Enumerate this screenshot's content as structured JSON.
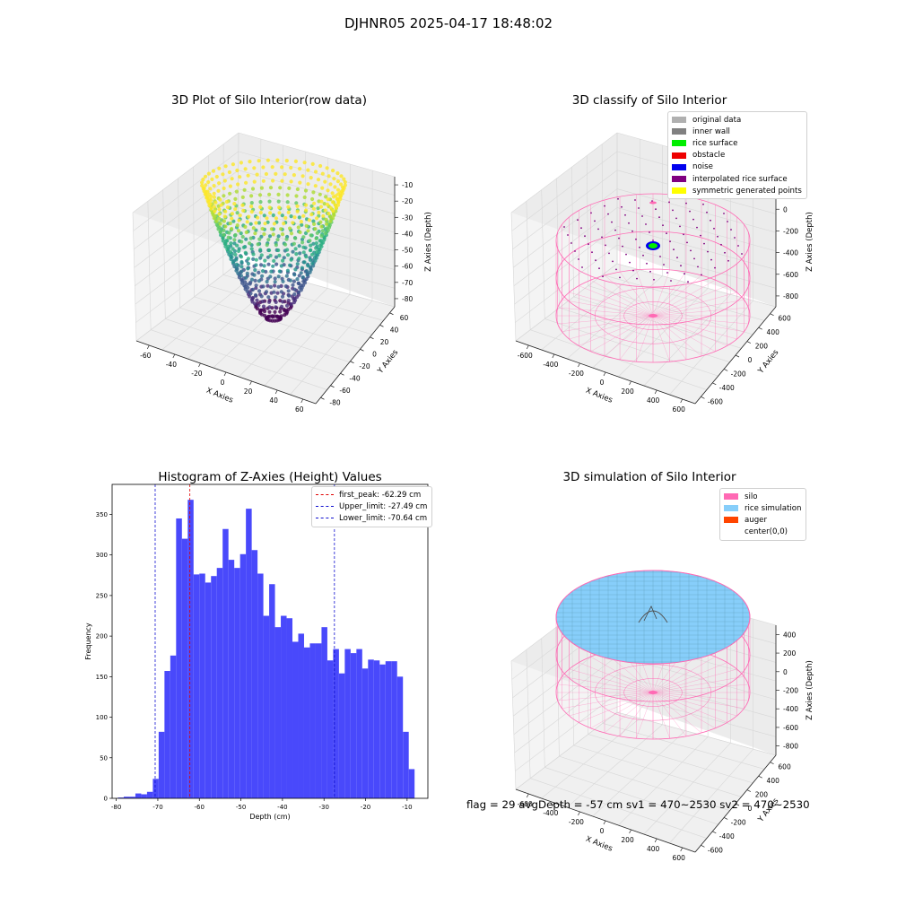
{
  "suptitle": "DJHNR05 2025-04-17 18:48:02",
  "colors": {
    "hist_bar": "#4949fb",
    "first_peak": "#e00000",
    "limit": "#1010d0",
    "silo": "#ff69b4",
    "rice": "#87cefa",
    "auger": "#ff4500",
    "rice_surface": "#00ee00",
    "noise": "#0000ee",
    "obstacle": "#ee0000",
    "inner_wall": "#808080",
    "original": "#b0b0b0",
    "interp": "#800080",
    "symmetric": "#ffff00"
  },
  "panel_raw": {
    "title": "3D Plot of Silo Interior(row data)",
    "x_label": "X Axies",
    "y_label": "Y Axies",
    "z_label": "Z Axies (Depth)",
    "x_ticks": [
      "-60",
      "-40",
      "-20",
      "0",
      "20",
      "40",
      "60"
    ],
    "y_ticks": [
      "-80",
      "-60",
      "-40",
      "-20",
      "0",
      "20",
      "40",
      "60"
    ],
    "z_ticks": [
      "-10",
      "-20",
      "-30",
      "-40",
      "-50",
      "-60",
      "-70",
      "-80"
    ],
    "colormap": "viridis"
  },
  "panel_classify": {
    "title": "3D classify of Silo Interior",
    "x_label": "X Axies",
    "y_label": "Y Axies",
    "z_label": "Z Axies (Depth)",
    "x_ticks": [
      "-600",
      "-400",
      "-200",
      "0",
      "200",
      "400",
      "600"
    ],
    "y_ticks": [
      "-600",
      "-400",
      "-200",
      "0",
      "200",
      "400",
      "600"
    ],
    "z_ticks": [
      "200",
      "0",
      "-200",
      "-400",
      "-600",
      "-800"
    ],
    "legend": [
      {
        "label": "original data",
        "color": "#b0b0b0"
      },
      {
        "label": "inner wall",
        "color": "#808080"
      },
      {
        "label": "rice surface",
        "color": "#00ee00"
      },
      {
        "label": "obstacle",
        "color": "#ee0000"
      },
      {
        "label": "noise",
        "color": "#0000ee"
      },
      {
        "label": "interpolated rice surface",
        "color": "#800080"
      },
      {
        "label": "symmetric generated points",
        "color": "#ffff00"
      }
    ]
  },
  "panel_sim": {
    "title": "3D simulation of Silo Interior",
    "x_label": "X Axies",
    "y_label": "Y Axies",
    "z_label": "Z Axies (Depth)",
    "x_ticks": [
      "-600",
      "-400",
      "-200",
      "0",
      "200",
      "400",
      "600"
    ],
    "y_ticks": [
      "-600",
      "-400",
      "-200",
      "0",
      "200",
      "400",
      "600"
    ],
    "z_ticks": [
      "400",
      "200",
      "0",
      "-200",
      "-400",
      "-600",
      "-800"
    ],
    "legend": [
      {
        "label": "silo",
        "color": "#ff69b4"
      },
      {
        "label": "rice simulation",
        "color": "#87cefa"
      },
      {
        "label": "auger",
        "color": "#ff4500"
      },
      {
        "label": "center(0,0)",
        "color": ""
      }
    ]
  },
  "status_text": "flag = 29  avgDepth = -57 cm   sv1 = 470~2530  sv2 = 470~2530",
  "chart_data": [
    {
      "type": "bar",
      "title": "Histogram of Z-Axies (Height) Values",
      "xlabel": "Depth (cm)",
      "ylabel": "Frequency",
      "xlim": [
        -81,
        -5
      ],
      "ylim": [
        0,
        387
      ],
      "xticks": [
        -80,
        -70,
        -60,
        -50,
        -40,
        -30,
        -20,
        -10
      ],
      "yticks": [
        0,
        50,
        100,
        150,
        200,
        250,
        300,
        350
      ],
      "bin_start": -79.6,
      "bin_width": 1.4,
      "values": [
        1,
        2,
        2,
        6,
        5,
        8,
        24,
        82,
        157,
        176,
        345,
        320,
        368,
        276,
        277,
        266,
        274,
        284,
        332,
        294,
        284,
        301,
        357,
        306,
        277,
        225,
        264,
        211,
        225,
        222,
        193,
        203,
        186,
        191,
        191,
        211,
        170,
        184,
        154,
        184,
        179,
        184,
        160,
        171,
        170,
        165,
        169,
        169,
        150,
        82,
        36
      ],
      "vlines": [
        {
          "x": -62.29,
          "style": "first_peak",
          "label": "first_peak: -62.29 cm"
        },
        {
          "x": -27.49,
          "style": "limit",
          "label": "Upper_limit: -27.49 cm"
        },
        {
          "x": -70.64,
          "style": "limit",
          "label": "Lower_limit: -70.64 cm"
        }
      ]
    }
  ]
}
